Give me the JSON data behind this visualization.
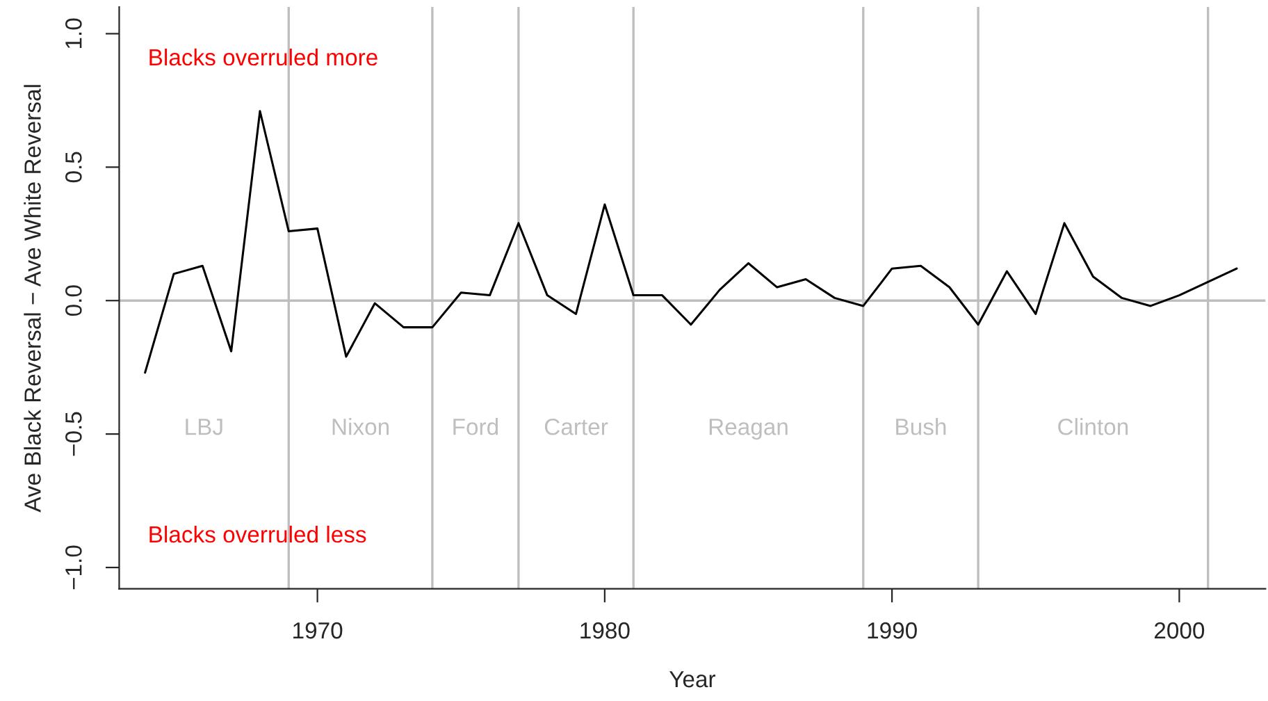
{
  "chart_data": {
    "type": "line",
    "xlabel": "Year",
    "ylabel": "Ave Black Reversal − Ave White Reversal",
    "x": [
      1964,
      1965,
      1966,
      1967,
      1968,
      1969,
      1970,
      1971,
      1972,
      1973,
      1974,
      1975,
      1976,
      1977,
      1978,
      1979,
      1980,
      1981,
      1982,
      1983,
      1984,
      1985,
      1986,
      1987,
      1988,
      1989,
      1990,
      1991,
      1992,
      1993,
      1994,
      1995,
      1996,
      1997,
      1998,
      1999,
      2000,
      2001,
      2002
    ],
    "series": [
      {
        "color": "#000000",
        "values": [
          -0.27,
          0.1,
          0.13,
          -0.19,
          0.71,
          0.26,
          0.27,
          -0.21,
          -0.01,
          -0.1,
          -0.1,
          0.03,
          0.02,
          0.29,
          0.02,
          -0.05,
          0.36,
          0.02,
          0.02,
          -0.09,
          0.04,
          0.14,
          0.05,
          0.08,
          0.01,
          -0.02,
          0.12,
          0.13,
          0.05,
          -0.09,
          0.11,
          -0.05,
          0.29,
          0.09,
          0.01,
          -0.02,
          0.02,
          0.07,
          0.12
        ]
      }
    ],
    "xlim": [
      1963.1,
      2003
    ],
    "ylim": [
      -1.08,
      1.1
    ],
    "xticks": [
      1970,
      1980,
      1990,
      2000
    ],
    "yticks": [
      {
        "value": -1,
        "label": "−1.0"
      },
      {
        "value": -0.5,
        "label": "−0.5"
      },
      {
        "value": 0,
        "label": "0.0"
      },
      0.5,
      {
        "value": 1,
        "label": "1.0"
      }
    ],
    "ref_lines": [
      {
        "axis": "y",
        "value": 0,
        "color": "#bebebe"
      },
      {
        "axis": "x",
        "value": 1969,
        "color": "#bebebe"
      },
      {
        "axis": "x",
        "value": 1974,
        "color": "#bebebe"
      },
      {
        "axis": "x",
        "value": 1977,
        "color": "#bebebe"
      },
      {
        "axis": "x",
        "value": 1981,
        "color": "#bebebe"
      },
      {
        "axis": "x",
        "value": 1989,
        "color": "#bebebe"
      },
      {
        "axis": "x",
        "value": 1993,
        "color": "#bebebe"
      },
      {
        "axis": "x",
        "value": 2001,
        "color": "#bebebe"
      }
    ],
    "annotations": [
      "Blacks overruled more",
      "Blacks overruled less",
      "LBJ",
      "Nixon",
      "Ford",
      "Carter",
      "Reagan",
      "Bush",
      "Clinton"
    ],
    "grid": false,
    "legend": false
  }
}
